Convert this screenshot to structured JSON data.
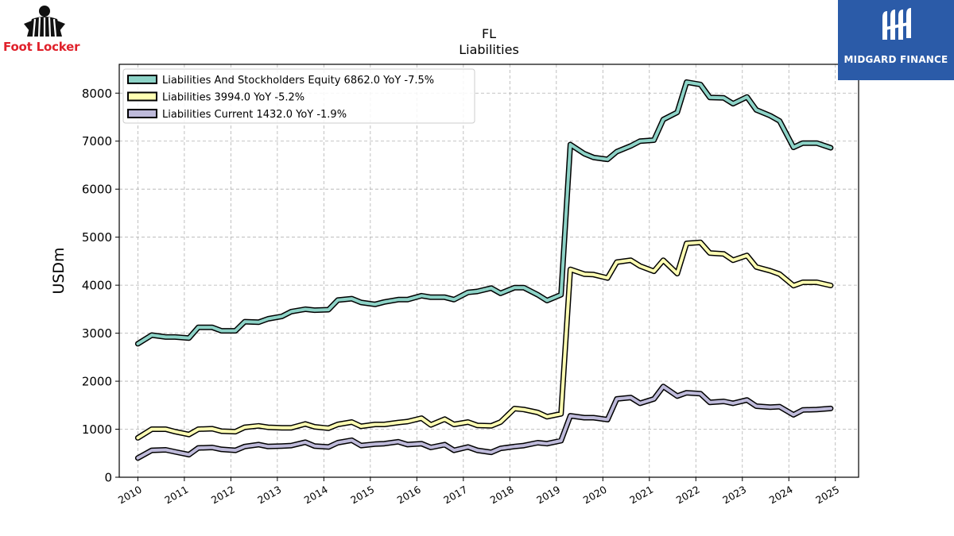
{
  "logos": {
    "left_brand": "Foot Locker",
    "right_brand": "MIDGARD FINANCE",
    "left_brand_color": "#e0212b",
    "right_bg_color": "#2b5ba8"
  },
  "chart_data": {
    "type": "line",
    "title": "FL",
    "subtitle": "Liabilities",
    "ylabel": "USDm",
    "xlabel": "",
    "xlim": [
      2009.6,
      2025.5
    ],
    "ylim": [
      0,
      8600
    ],
    "yticks": [
      0,
      1000,
      2000,
      3000,
      4000,
      5000,
      6000,
      7000,
      8000
    ],
    "xticks": [
      "2010",
      "2011",
      "2012",
      "2013",
      "2014",
      "2015",
      "2016",
      "2017",
      "2018",
      "2019",
      "2020",
      "2021",
      "2022",
      "2023",
      "2024",
      "2025"
    ],
    "grid": true,
    "legend_position": "top-left",
    "x": [
      2010.0,
      2010.3,
      2010.6,
      2010.8,
      2011.1,
      2011.3,
      2011.6,
      2011.8,
      2012.1,
      2012.3,
      2012.6,
      2012.8,
      2013.1,
      2013.3,
      2013.6,
      2013.8,
      2014.1,
      2014.3,
      2014.6,
      2014.8,
      2015.1,
      2015.3,
      2015.6,
      2015.8,
      2016.1,
      2016.3,
      2016.6,
      2016.8,
      2017.1,
      2017.3,
      2017.6,
      2017.8,
      2018.1,
      2018.3,
      2018.6,
      2018.8,
      2019.1,
      2019.3,
      2019.6,
      2019.8,
      2020.1,
      2020.3,
      2020.6,
      2020.8,
      2021.1,
      2021.3,
      2021.6,
      2021.8,
      2022.1,
      2022.3,
      2022.6,
      2022.8,
      2023.1,
      2023.3,
      2023.6,
      2023.8,
      2024.1,
      2024.3,
      2024.6,
      2024.9
    ],
    "series": [
      {
        "name": "Liabilities And Stockholders Equity",
        "legend_label": "Liabilities And Stockholders Equity  6862.0 YoY -7.5%",
        "color": "#8dd3c7",
        "values": [
          2780,
          2960,
          2920,
          2920,
          2900,
          3120,
          3120,
          3050,
          3050,
          3240,
          3230,
          3300,
          3350,
          3450,
          3500,
          3480,
          3490,
          3690,
          3720,
          3640,
          3600,
          3650,
          3700,
          3700,
          3780,
          3750,
          3750,
          3700,
          3850,
          3870,
          3940,
          3830,
          3950,
          3950,
          3800,
          3680,
          3800,
          6930,
          6740,
          6660,
          6620,
          6780,
          6900,
          7000,
          7020,
          7450,
          7600,
          8230,
          8180,
          7910,
          7900,
          7780,
          7920,
          7650,
          7530,
          7420,
          6870,
          6960,
          6960,
          6862
        ]
      },
      {
        "name": "Liabilities",
        "legend_label": "Liabilities  3994.0 YoY -5.2%",
        "color": "#ffffb3",
        "values": [
          820,
          1000,
          1000,
          950,
          890,
          1000,
          1010,
          960,
          950,
          1040,
          1070,
          1040,
          1030,
          1030,
          1110,
          1050,
          1020,
          1100,
          1150,
          1060,
          1100,
          1100,
          1140,
          1160,
          1230,
          1090,
          1210,
          1100,
          1150,
          1080,
          1070,
          1150,
          1430,
          1410,
          1350,
          1260,
          1320,
          4330,
          4230,
          4220,
          4150,
          4480,
          4520,
          4400,
          4290,
          4520,
          4240,
          4870,
          4890,
          4670,
          4650,
          4520,
          4620,
          4380,
          4300,
          4230,
          3990,
          4060,
          4060,
          3994
        ]
      },
      {
        "name": "Liabilities Current",
        "legend_label": "Liabilities Current  1432.0 YoY -1.9%",
        "color": "#bebada",
        "values": [
          400,
          560,
          570,
          530,
          470,
          610,
          620,
          580,
          560,
          640,
          680,
          640,
          650,
          660,
          730,
          650,
          630,
          720,
          770,
          660,
          690,
          700,
          740,
          680,
          700,
          620,
          680,
          560,
          630,
          560,
          520,
          600,
          640,
          660,
          720,
          700,
          760,
          1280,
          1240,
          1240,
          1200,
          1630,
          1660,
          1540,
          1630,
          1890,
          1690,
          1760,
          1740,
          1560,
          1580,
          1540,
          1610,
          1480,
          1460,
          1470,
          1300,
          1400,
          1410,
          1432
        ]
      }
    ]
  }
}
